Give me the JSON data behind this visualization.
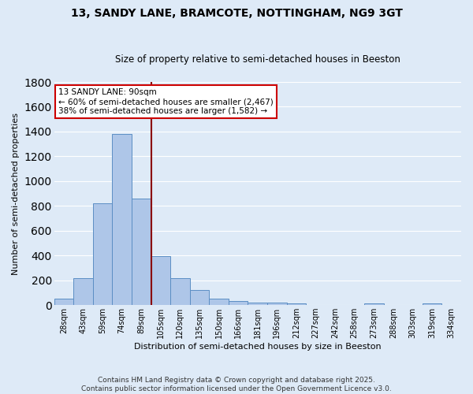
{
  "title_line1": "13, SANDY LANE, BRAMCOTE, NOTTINGHAM, NG9 3GT",
  "title_line2": "Size of property relative to semi-detached houses in Beeston",
  "xlabel": "Distribution of semi-detached houses by size in Beeston",
  "ylabel": "Number of semi-detached properties",
  "footnote1": "Contains HM Land Registry data © Crown copyright and database right 2025.",
  "footnote2": "Contains public sector information licensed under the Open Government Licence v3.0.",
  "annotation_line1": "13 SANDY LANE: 90sqm",
  "annotation_line2": "← 60% of semi-detached houses are smaller (2,467)",
  "annotation_line3": "38% of semi-detached houses are larger (1,582) →",
  "bar_labels": [
    "28sqm",
    "43sqm",
    "59sqm",
    "74sqm",
    "89sqm",
    "105sqm",
    "120sqm",
    "135sqm",
    "150sqm",
    "166sqm",
    "181sqm",
    "196sqm",
    "212sqm",
    "227sqm",
    "242sqm",
    "258sqm",
    "273sqm",
    "288sqm",
    "303sqm",
    "319sqm",
    "334sqm"
  ],
  "bar_values": [
    50,
    220,
    820,
    1380,
    860,
    395,
    220,
    120,
    50,
    32,
    22,
    18,
    12,
    0,
    0,
    0,
    12,
    0,
    0,
    12,
    0
  ],
  "bar_color": "#aec6e8",
  "bar_edge_color": "#5b8ec4",
  "marker_color": "#8b0000",
  "ylim": [
    0,
    1800
  ],
  "yticks": [
    0,
    200,
    400,
    600,
    800,
    1000,
    1200,
    1400,
    1600,
    1800
  ],
  "bg_color": "#deeaf7",
  "grid_color": "#ffffff",
  "annotation_box_color": "#ffffff",
  "annotation_box_edge": "#cc0000",
  "title_fontsize": 10,
  "subtitle_fontsize": 8.5,
  "xlabel_fontsize": 8,
  "ylabel_fontsize": 8,
  "tick_fontsize": 7,
  "annotation_fontsize": 7.5,
  "footnote_fontsize": 6.5
}
